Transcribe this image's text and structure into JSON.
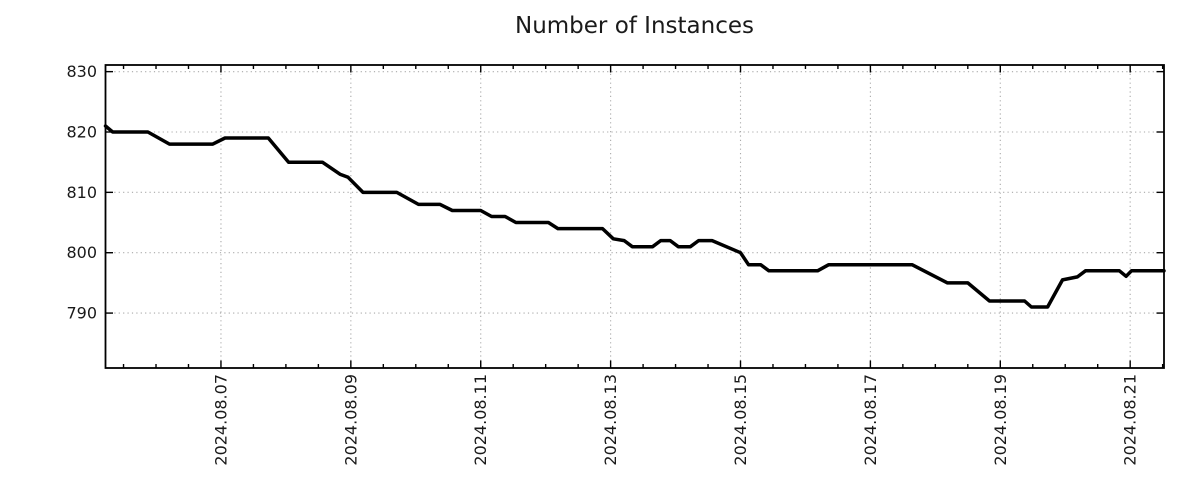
{
  "page": {
    "background": "#ffffff"
  },
  "chart_data": {
    "type": "line",
    "title": "Number of Instances",
    "legend": null,
    "grid": {
      "shown": true,
      "style": "dotted",
      "color": "#aaaaaa"
    },
    "frame_color": "#000000",
    "text_color": "#1a1a1a",
    "x_axis": {
      "start": "2024-08-05T05:20",
      "end": "2024-08-21T12:30",
      "major_ticks": [
        {
          "date": "2024-08-07T00:00",
          "label": "2024.08.07"
        },
        {
          "date": "2024-08-09T00:00",
          "label": "2024.08.09"
        },
        {
          "date": "2024-08-11T00:00",
          "label": "2024.08.11"
        },
        {
          "date": "2024-08-13T00:00",
          "label": "2024.08.13"
        },
        {
          "date": "2024-08-15T00:00",
          "label": "2024.08.15"
        },
        {
          "date": "2024-08-17T00:00",
          "label": "2024.08.17"
        },
        {
          "date": "2024-08-19T00:00",
          "label": "2024.08.19"
        },
        {
          "date": "2024-08-21T00:00",
          "label": "2024.08.21"
        }
      ],
      "minor_tick_interval_hours": 12,
      "tick_label_rotation_deg": -90,
      "gridlines": true
    },
    "y_axis": {
      "min": 780.9,
      "max": 831.1,
      "ticks": [
        790,
        800,
        810,
        820,
        830
      ],
      "gridlines": true
    },
    "series": [
      {
        "name": "instances",
        "color": "#000000",
        "line_width": 3.5,
        "points": [
          [
            "2024-08-05T05:20",
            821
          ],
          [
            "2024-08-05T08:00",
            820
          ],
          [
            "2024-08-05T21:00",
            820
          ],
          [
            "2024-08-06T05:00",
            818
          ],
          [
            "2024-08-06T21:00",
            818
          ],
          [
            "2024-08-07T01:30",
            819
          ],
          [
            "2024-08-07T17:30",
            819
          ],
          [
            "2024-08-08T01:00",
            815
          ],
          [
            "2024-08-08T13:30",
            815
          ],
          [
            "2024-08-08T20:00",
            813
          ],
          [
            "2024-08-08T23:00",
            812.5
          ],
          [
            "2024-08-09T04:30",
            810
          ],
          [
            "2024-08-09T17:00",
            810
          ],
          [
            "2024-08-10T01:00",
            808
          ],
          [
            "2024-08-10T09:00",
            808
          ],
          [
            "2024-08-10T13:30",
            807
          ],
          [
            "2024-08-11T00:00",
            807
          ],
          [
            "2024-08-11T04:00",
            806
          ],
          [
            "2024-08-11T09:00",
            806
          ],
          [
            "2024-08-11T13:00",
            805
          ],
          [
            "2024-08-12T01:00",
            805
          ],
          [
            "2024-08-12T04:30",
            804
          ],
          [
            "2024-08-12T21:00",
            804
          ],
          [
            "2024-08-13T01:00",
            802.3
          ],
          [
            "2024-08-13T05:00",
            802
          ],
          [
            "2024-08-13T08:00",
            801
          ],
          [
            "2024-08-13T15:30",
            801
          ],
          [
            "2024-08-13T18:30",
            802
          ],
          [
            "2024-08-13T22:00",
            802
          ],
          [
            "2024-08-14T01:00",
            801
          ],
          [
            "2024-08-14T05:30",
            801
          ],
          [
            "2024-08-14T08:30",
            802
          ],
          [
            "2024-08-14T13:30",
            802
          ],
          [
            "2024-08-15T00:00",
            800
          ],
          [
            "2024-08-15T03:00",
            798
          ],
          [
            "2024-08-15T07:30",
            798
          ],
          [
            "2024-08-15T10:30",
            797
          ],
          [
            "2024-08-16T04:30",
            797
          ],
          [
            "2024-08-16T08:30",
            798
          ],
          [
            "2024-08-17T15:30",
            798
          ],
          [
            "2024-08-18T04:30",
            795
          ],
          [
            "2024-08-18T12:00",
            795
          ],
          [
            "2024-08-18T20:00",
            792
          ],
          [
            "2024-08-19T09:00",
            792
          ],
          [
            "2024-08-19T11:30",
            791
          ],
          [
            "2024-08-19T17:30",
            791
          ],
          [
            "2024-08-19T23:00",
            795.5
          ],
          [
            "2024-08-20T04:30",
            796
          ],
          [
            "2024-08-20T07:30",
            797
          ],
          [
            "2024-08-20T20:00",
            797
          ],
          [
            "2024-08-20T22:30",
            796.1
          ],
          [
            "2024-08-21T00:30",
            797
          ],
          [
            "2024-08-21T12:30",
            797
          ]
        ]
      }
    ]
  }
}
